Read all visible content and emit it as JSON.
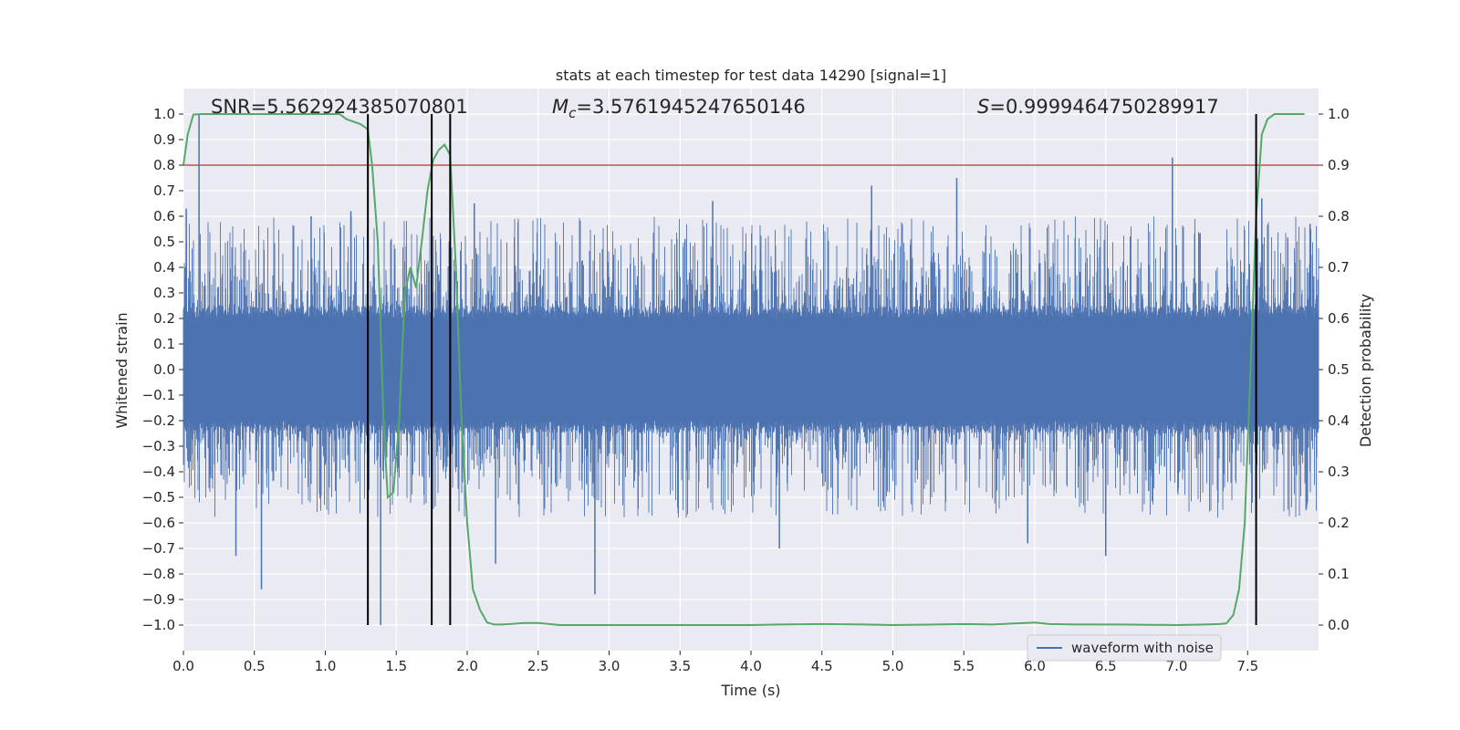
{
  "chart_data": {
    "type": "line",
    "title": "stats at each timestep for test data 14290 [signal=1]",
    "xlabel": "Time (s)",
    "ylabel": "Whitened strain",
    "ylabel_right": "Detection probability",
    "xlim": [
      0.0,
      8.0
    ],
    "ylim": [
      -1.1,
      1.1
    ],
    "ylim_right": [
      -0.05,
      1.05
    ],
    "x_ticks": [
      0.0,
      0.5,
      1.0,
      1.5,
      2.0,
      2.5,
      3.0,
      3.5,
      4.0,
      4.5,
      5.0,
      5.5,
      6.0,
      6.5,
      7.0,
      7.5
    ],
    "x_tick_labels": [
      "0.0",
      "0.5",
      "1.0",
      "1.5",
      "2.0",
      "2.5",
      "3.0",
      "3.5",
      "4.0",
      "4.5",
      "5.0",
      "5.5",
      "6.0",
      "6.5",
      "7.0",
      "7.5"
    ],
    "y_ticks": [
      1.0,
      0.9,
      0.8,
      0.7,
      0.6,
      0.5,
      0.4,
      0.3,
      0.2,
      0.1,
      0.0,
      -0.1,
      -0.2,
      -0.3,
      -0.4,
      -0.5,
      -0.6,
      -0.7,
      -0.8,
      -0.9,
      -1.0
    ],
    "y_tick_labels": [
      "1.0",
      "0.9",
      "0.8",
      "0.7",
      "0.6",
      "0.5",
      "0.4",
      "0.3",
      "0.2",
      "0.1",
      "0.0",
      "−0.1",
      "−0.2",
      "−0.3",
      "−0.4",
      "−0.5",
      "−0.6",
      "−0.7",
      "−0.8",
      "−0.9",
      "−1.0"
    ],
    "y_right_ticks": [
      1.0,
      0.9,
      0.8,
      0.7,
      0.6,
      0.5,
      0.4,
      0.3,
      0.2,
      0.1,
      0.0
    ],
    "y_right_tick_labels": [
      "1.0",
      "0.9",
      "0.8",
      "0.7",
      "0.6",
      "0.5",
      "0.4",
      "0.3",
      "0.2",
      "0.1",
      "0.0"
    ],
    "grid": true,
    "annotations": {
      "snr": "SNR=5.562924385070801",
      "mc_symbol": "M",
      "mc_subscript": "c",
      "mc_value": "=3.5761945247650146",
      "s_symbol": "S",
      "s_value": "=0.9999464750289917"
    },
    "threshold_line": {
      "y_right": 0.9,
      "color": "#c44e52"
    },
    "vertical_lines_x": [
      1.3,
      1.75,
      1.88,
      7.56
    ],
    "series": [
      {
        "name": "waveform with noise",
        "color": "#4c72b0",
        "kind": "noise-envelope",
        "core_amplitude": 0.2,
        "spike_peaks": [
          {
            "x": 0.02,
            "y": 0.63
          },
          {
            "x": 0.11,
            "y": 1.0
          },
          {
            "x": 0.37,
            "y": -0.73
          },
          {
            "x": 0.55,
            "y": -0.86
          },
          {
            "x": 0.9,
            "y": 0.6
          },
          {
            "x": 1.18,
            "y": 0.62
          },
          {
            "x": 1.39,
            "y": -1.0
          },
          {
            "x": 1.75,
            "y": -0.55
          },
          {
            "x": 1.88,
            "y": 0.88
          },
          {
            "x": 2.05,
            "y": 0.65
          },
          {
            "x": 2.2,
            "y": -0.76
          },
          {
            "x": 2.9,
            "y": -0.88
          },
          {
            "x": 3.73,
            "y": 0.66
          },
          {
            "x": 4.2,
            "y": -0.7
          },
          {
            "x": 4.85,
            "y": 0.72
          },
          {
            "x": 5.45,
            "y": 0.75
          },
          {
            "x": 5.95,
            "y": -0.68
          },
          {
            "x": 6.5,
            "y": -0.73
          },
          {
            "x": 6.97,
            "y": 0.83
          },
          {
            "x": 7.6,
            "y": 0.67
          },
          {
            "x": 7.94,
            "y": 0.57
          }
        ]
      },
      {
        "name": "detection probability",
        "color": "#55a868",
        "axis": "right",
        "x": [
          0.0,
          0.03,
          0.07,
          0.12,
          0.3,
          0.6,
          0.9,
          1.1,
          1.15,
          1.25,
          1.3,
          1.33,
          1.37,
          1.41,
          1.44,
          1.48,
          1.52,
          1.56,
          1.6,
          1.64,
          1.68,
          1.72,
          1.76,
          1.8,
          1.84,
          1.88,
          1.92,
          1.96,
          2.0,
          2.04,
          2.09,
          2.14,
          2.19,
          2.24,
          2.3,
          2.4,
          2.5,
          2.58,
          2.65,
          2.7,
          2.8,
          3.0,
          3.3,
          3.5,
          4.0,
          4.2,
          4.5,
          4.8,
          5.0,
          5.3,
          5.5,
          5.7,
          6.0,
          6.1,
          6.3,
          6.6,
          7.0,
          7.2,
          7.3,
          7.35,
          7.4,
          7.44,
          7.48,
          7.52,
          7.56,
          7.6,
          7.64,
          7.69,
          7.75,
          7.8,
          7.9
        ],
        "y": [
          0.9,
          0.96,
          0.999,
          1.0,
          1.0,
          1.0,
          1.0,
          1.0,
          0.99,
          0.98,
          0.97,
          0.9,
          0.75,
          0.4,
          0.25,
          0.26,
          0.4,
          0.65,
          0.7,
          0.66,
          0.75,
          0.85,
          0.91,
          0.93,
          0.94,
          0.92,
          0.7,
          0.4,
          0.2,
          0.07,
          0.03,
          0.005,
          0.001,
          0.001,
          0.002,
          0.004,
          0.004,
          0.002,
          0.0,
          0.0,
          0.0,
          0.0,
          0.0,
          0.0,
          0.0,
          0.001,
          0.002,
          0.001,
          0.0,
          0.001,
          0.002,
          0.001,
          0.005,
          0.002,
          0.001,
          0.001,
          0.0,
          0.001,
          0.002,
          0.003,
          0.02,
          0.07,
          0.2,
          0.5,
          0.8,
          0.96,
          0.99,
          1.0,
          1.0,
          1.0,
          1.0
        ]
      }
    ],
    "legend": {
      "entries": [
        "waveform with noise"
      ],
      "placement": "lower-right"
    }
  }
}
